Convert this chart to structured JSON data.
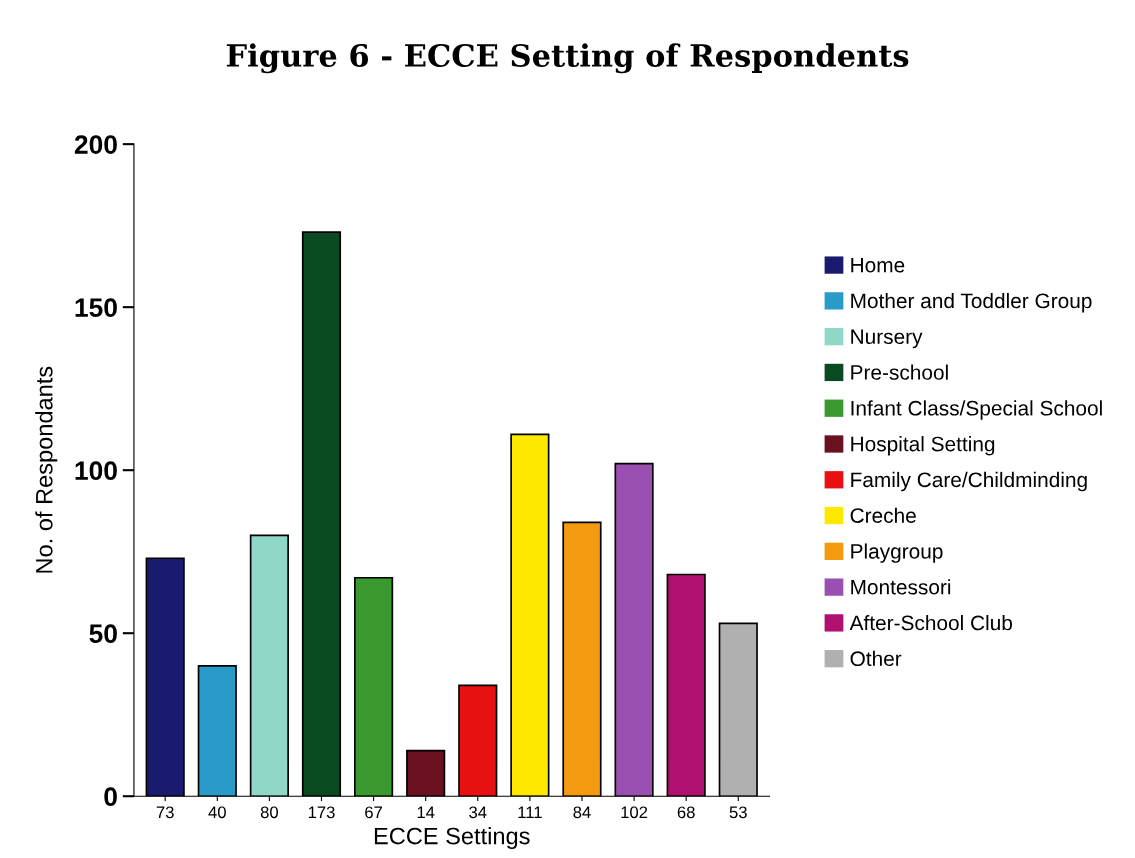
{
  "chart_data": {
    "type": "bar",
    "title": "Figure 6 - ECCE Setting of Respondents",
    "xlabel": "ECCE Settings",
    "ylabel": "No. of Respondants",
    "categories": [
      null,
      null,
      null,
      null,
      null,
      null,
      null,
      null,
      null,
      null,
      null,
      null
    ],
    "series": [
      {
        "name": "Home",
        "color": "#1a1a6e",
        "values": [
          73,
          null,
          null,
          null,
          null,
          null,
          null,
          null,
          null,
          null,
          null,
          null
        ]
      },
      {
        "name": "Mother and Toddler Group",
        "color": "#2a9ac8",
        "values": [
          null,
          40,
          null,
          null,
          null,
          null,
          null,
          null,
          null,
          null,
          null,
          null
        ]
      },
      {
        "name": "Nursery",
        "color": "#8fd8c8",
        "values": [
          null,
          null,
          80,
          null,
          null,
          null,
          null,
          null,
          null,
          null,
          null,
          null
        ]
      },
      {
        "name": "Pre-school",
        "color": "#0a4a20",
        "values": [
          null,
          null,
          null,
          173,
          null,
          null,
          null,
          null,
          null,
          null,
          null,
          null
        ]
      },
      {
        "name": "Infant Class/Special School",
        "color": "#3a9a30",
        "values": [
          null,
          null,
          null,
          null,
          67,
          null,
          null,
          null,
          null,
          null,
          null,
          null
        ]
      },
      {
        "name": "Hospital Setting",
        "color": "#6a1020",
        "values": [
          null,
          null,
          null,
          null,
          null,
          14,
          null,
          null,
          null,
          null,
          null,
          null
        ]
      },
      {
        "name": "Family Care/Childminding",
        "color": "#e81010",
        "values": [
          null,
          null,
          null,
          null,
          null,
          null,
          34,
          null,
          null,
          null,
          null,
          null
        ]
      },
      {
        "name": "Creche",
        "color": "#ffe800",
        "values": [
          null,
          null,
          null,
          null,
          null,
          null,
          null,
          111,
          null,
          null,
          null,
          null
        ]
      },
      {
        "name": "Playgroup",
        "color": "#f39a10",
        "values": [
          null,
          null,
          null,
          null,
          null,
          null,
          null,
          null,
          84,
          null,
          null,
          null
        ]
      },
      {
        "name": "Montessori",
        "color": "#9a50b0",
        "values": [
          null,
          null,
          null,
          null,
          null,
          null,
          null,
          null,
          null,
          102,
          null,
          null
        ]
      },
      {
        "name": "After-School Club",
        "color": "#b01070",
        "values": [
          null,
          null,
          null,
          null,
          null,
          null,
          null,
          null,
          null,
          null,
          68,
          null
        ]
      },
      {
        "name": "Other",
        "color": "#b0b0b0",
        "values": [
          null,
          null,
          null,
          null,
          null,
          null,
          null,
          null,
          null,
          null,
          null,
          53
        ]
      }
    ],
    "ylim": [
      0,
      200
    ],
    "yticks": [
      0,
      50,
      100,
      150,
      200
    ],
    "data_labels": true,
    "legend": "right",
    "grid": false
  }
}
